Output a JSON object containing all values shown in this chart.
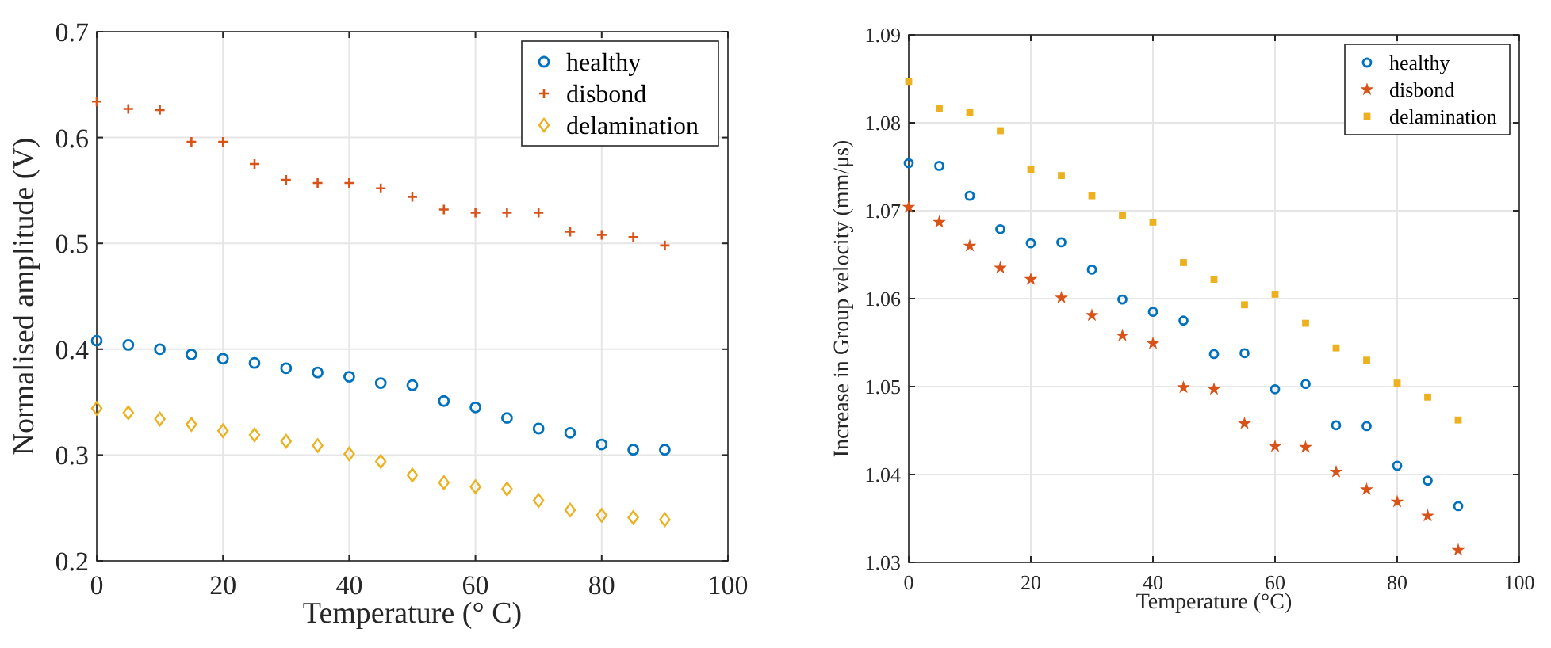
{
  "chart_data": [
    {
      "type": "scatter",
      "xlabel": "Temperature (° C)",
      "ylabel": "Normalised amplitude (V)",
      "x": [
        0,
        5,
        10,
        15,
        20,
        25,
        30,
        35,
        40,
        45,
        50,
        55,
        60,
        65,
        70,
        75,
        80,
        85,
        90
      ],
      "xlim": [
        0,
        100
      ],
      "xticks": [
        0,
        20,
        40,
        60,
        80,
        100
      ],
      "ylim": [
        0.2,
        0.7
      ],
      "yticks": [
        0.2,
        0.3,
        0.4,
        0.5,
        0.6,
        0.7
      ],
      "grid": true,
      "legend": "top right",
      "series": [
        {
          "name": "healthy",
          "color": "#0072bd",
          "marker": "circle",
          "values": [
            0.408,
            0.404,
            0.4,
            0.395,
            0.391,
            0.387,
            0.382,
            0.378,
            0.374,
            0.368,
            0.366,
            0.351,
            0.345,
            0.335,
            0.325,
            0.321,
            0.31,
            0.305,
            0.305
          ]
        },
        {
          "name": "disbond",
          "color": "#d95319",
          "marker": "cross",
          "values": [
            0.634,
            0.627,
            0.626,
            0.596,
            0.596,
            0.575,
            0.56,
            0.557,
            0.557,
            0.552,
            0.544,
            0.532,
            0.529,
            0.529,
            0.529,
            0.511,
            0.508,
            0.506,
            0.498
          ]
        },
        {
          "name": "delamination",
          "color": "#edb120",
          "marker": "diamond",
          "values": [
            0.344,
            0.34,
            0.334,
            0.329,
            0.323,
            0.319,
            0.313,
            0.309,
            0.301,
            0.294,
            0.281,
            0.274,
            0.27,
            0.268,
            0.257,
            0.248,
            0.243,
            0.241,
            0.239
          ]
        }
      ]
    },
    {
      "type": "scatter",
      "xlabel": "Temperature (°C)",
      "ylabel": "Increase in Group velocity (mm/μs)",
      "x": [
        0,
        5,
        10,
        15,
        20,
        25,
        30,
        35,
        40,
        45,
        50,
        55,
        60,
        65,
        70,
        75,
        80,
        85,
        90
      ],
      "xlim": [
        0,
        100
      ],
      "xticks": [
        0,
        20,
        40,
        60,
        80,
        100
      ],
      "ylim": [
        1.03,
        1.09
      ],
      "yticks": [
        1.03,
        1.04,
        1.05,
        1.06,
        1.07,
        1.08,
        1.09
      ],
      "grid": true,
      "legend": "top right",
      "series": [
        {
          "name": "healthy",
          "color": "#0072bd",
          "marker": "circle",
          "values": [
            1.0754,
            1.0751,
            1.0717,
            1.0679,
            1.0663,
            1.0664,
            1.0633,
            1.0599,
            1.0585,
            1.0575,
            1.0537,
            1.0538,
            1.0497,
            1.0503,
            1.0456,
            1.0455,
            1.041,
            1.0393,
            1.0364
          ]
        },
        {
          "name": "disbond",
          "color": "#d95319",
          "marker": "star",
          "values": [
            1.0704,
            1.0687,
            1.066,
            1.0635,
            1.0622,
            1.0601,
            1.0581,
            1.0558,
            1.0549,
            1.0499,
            1.0497,
            1.0458,
            1.0432,
            1.0431,
            1.0403,
            1.0383,
            1.0369,
            1.0353,
            1.0314
          ]
        },
        {
          "name": "delamination",
          "color": "#edb120",
          "marker": "square",
          "values": [
            1.0847,
            1.0816,
            1.0812,
            1.0791,
            1.0747,
            1.074,
            1.0717,
            1.0695,
            1.0687,
            1.0641,
            1.0622,
            1.0593,
            1.0605,
            1.0572,
            1.0544,
            1.053,
            1.0504,
            1.0488,
            1.0462
          ]
        }
      ]
    }
  ]
}
